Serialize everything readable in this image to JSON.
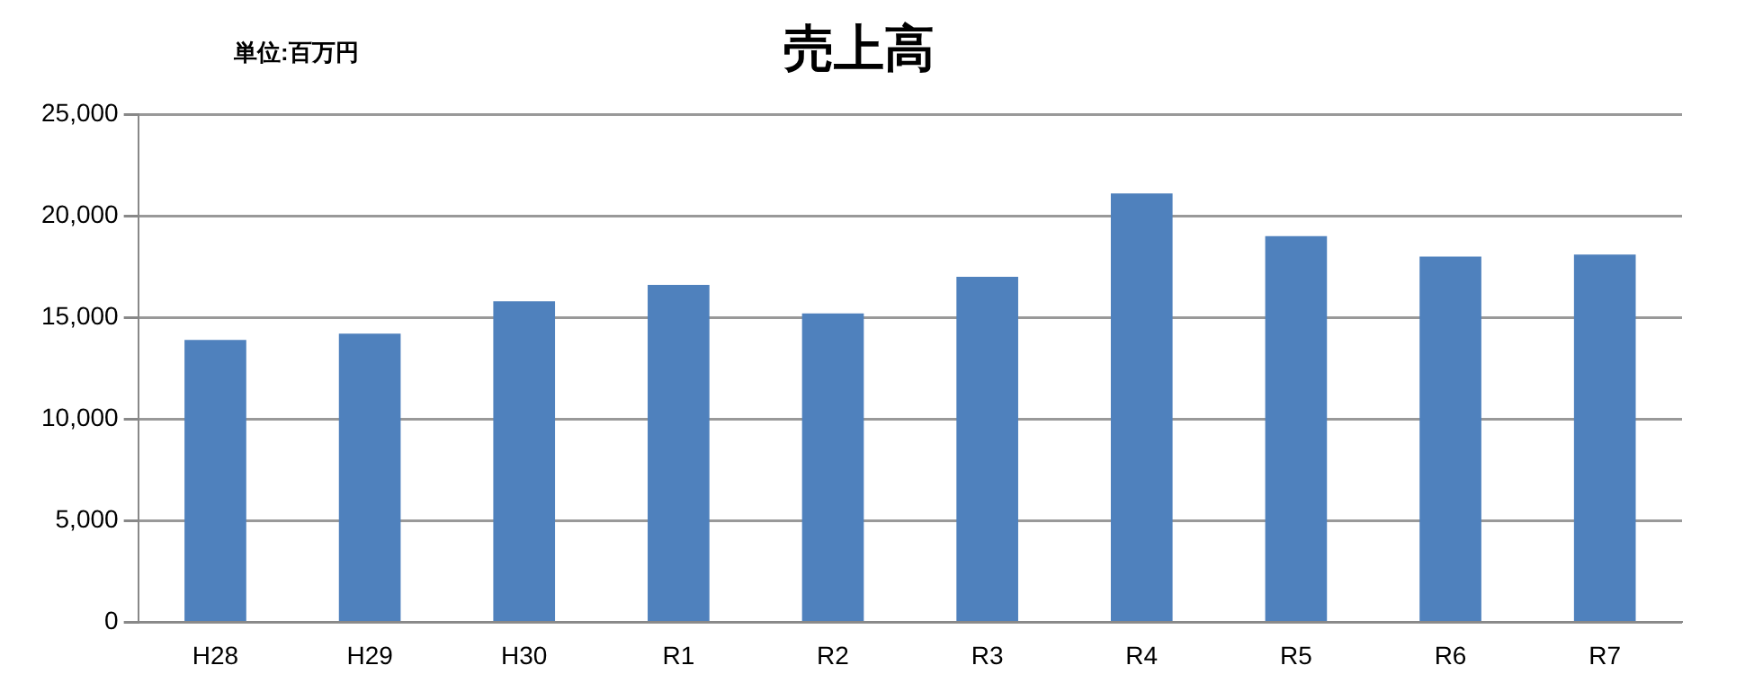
{
  "chart_data": {
    "type": "bar",
    "title": "売上高",
    "annotations": [
      "単位:百万円"
    ],
    "categories": [
      "H28",
      "H29",
      "H30",
      "R1",
      "R2",
      "R3",
      "R4",
      "R5",
      "R6",
      "R7"
    ],
    "values": [
      13900,
      14200,
      15800,
      16600,
      15200,
      17000,
      21100,
      19000,
      18000,
      18100
    ],
    "color": "#4f81bd",
    "ylim": [
      0,
      25000
    ],
    "yticks": [
      0,
      {
        "value": 5000,
        "label": "5,000"
      },
      {
        "value": 10000,
        "label": "10,000"
      },
      {
        "value": 15000,
        "label": "15,000"
      },
      {
        "value": 20000,
        "label": "20,000"
      },
      {
        "value": 25000,
        "label": "25,000"
      }
    ],
    "grid": "y",
    "legend": false
  }
}
